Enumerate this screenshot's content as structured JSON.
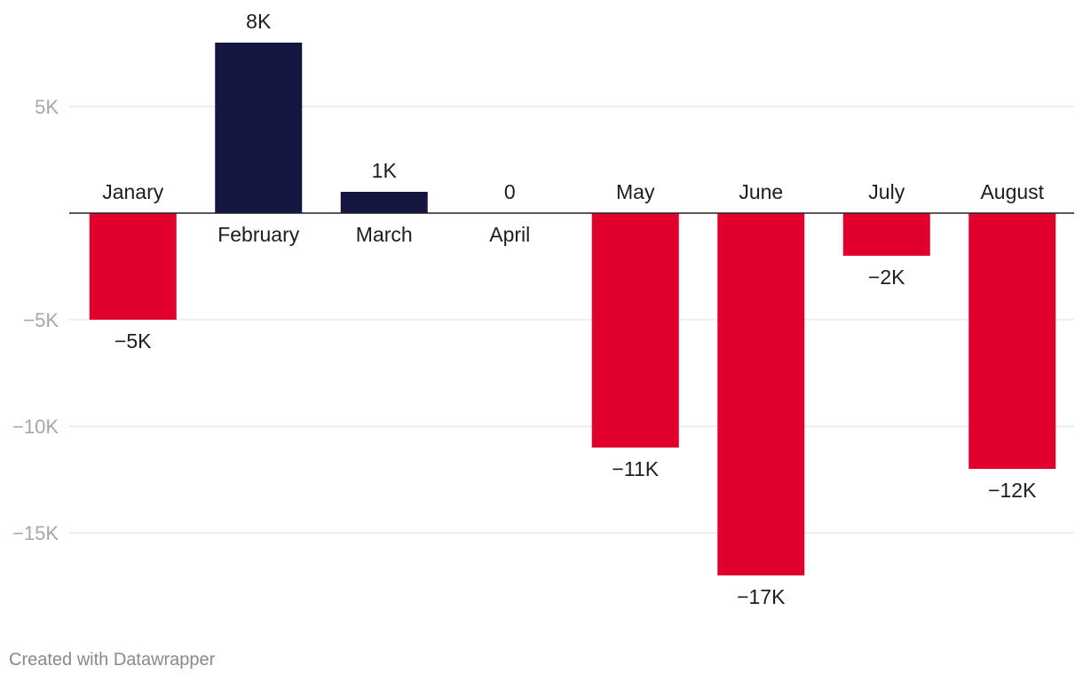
{
  "chart_data": {
    "type": "bar",
    "categories": [
      "Janary",
      "February",
      "March",
      "April",
      "May",
      "June",
      "July",
      "August"
    ],
    "values": [
      -5000,
      8000,
      1000,
      0,
      -11000,
      -17000,
      -2000,
      -12000
    ],
    "value_labels": [
      "−5K",
      "8K",
      "1K",
      "0",
      "−11K",
      "−17K",
      "−2K",
      "−12K"
    ],
    "title": "",
    "xlabel": "",
    "ylabel": "",
    "ylim": [
      -17000,
      8000
    ],
    "yticks": [
      5000,
      -5000,
      -10000,
      -15000
    ],
    "ytick_labels": [
      "5K",
      "−5K",
      "−10K",
      "−15K"
    ],
    "grid": true,
    "colors": {
      "positive": "#141541",
      "negative": "#e1002d",
      "grid": "#dddddd",
      "zero_line": "#222222",
      "tick_text": "#a7a7a7",
      "label_text": "#1d1d1d"
    }
  },
  "footer": {
    "credit": "Created with Datawrapper"
  }
}
